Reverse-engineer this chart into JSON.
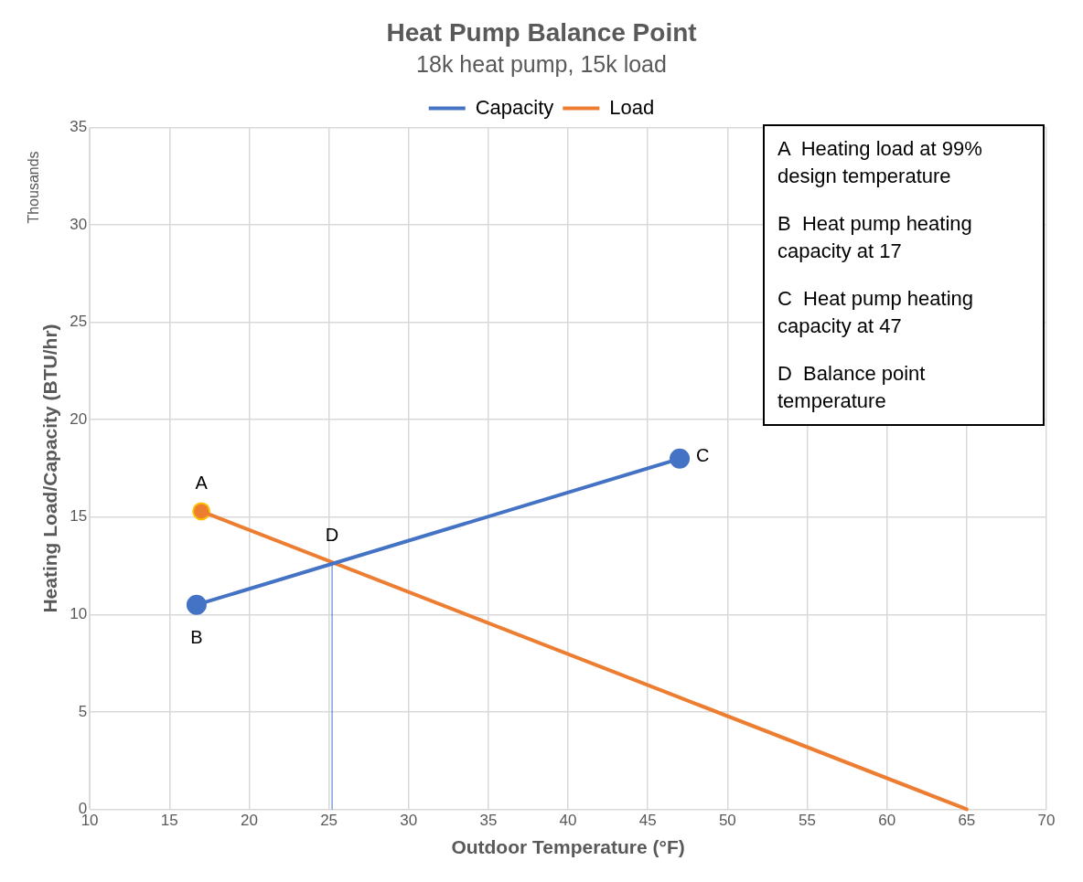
{
  "chart_data": {
    "type": "line",
    "title": "Heat Pump Balance Point",
    "subtitle": "18k heat pump, 15k load",
    "xlabel": "Outdoor Temperature (°F)",
    "ylabel": "Heating Load/Capacity (BTU/hr)",
    "xlim": [
      10,
      70
    ],
    "xticks": [
      10,
      15,
      20,
      25,
      30,
      35,
      40,
      45,
      50,
      55,
      60,
      65,
      70
    ],
    "ylim": [
      0,
      35
    ],
    "yticks": [
      0,
      5,
      10,
      15,
      20,
      25,
      30,
      35
    ],
    "grid": true,
    "legend": "top",
    "line_style": "solid",
    "series": [
      {
        "name": "Capacity",
        "color": "#4472c4",
        "x": [
          16.7,
          47
        ],
        "values": [
          10.5,
          18
        ],
        "marker": "circle"
      },
      {
        "name": "Load",
        "color": "#ed7d31",
        "x": [
          17,
          65
        ],
        "values": [
          15.3,
          0
        ],
        "marker": "none"
      },
      {
        "type": "scatter",
        "color": "#ed7d31",
        "x": [
          17
        ],
        "values": [
          15.3
        ],
        "marker": "circle"
      },
      {
        "color": "#4472c4",
        "x": [
          25.2,
          25.2
        ],
        "values": [
          0,
          12.6
        ],
        "marker": "none"
      }
    ],
    "annotations": [
      "Thousands",
      "A  Heating load at 99% design temperature",
      "B  Heat pump heating capacity at 17",
      "C  Heat pump heating capacity at 47",
      "D  Balance point temperature",
      {
        "text": "A",
        "x": 17,
        "y": 15.3
      },
      {
        "text": "B",
        "x": 16.7,
        "y": 10.5
      },
      {
        "text": "C",
        "x": 47,
        "y": 18
      },
      {
        "text": "D",
        "x": 25.2,
        "y": 12.6
      }
    ]
  }
}
